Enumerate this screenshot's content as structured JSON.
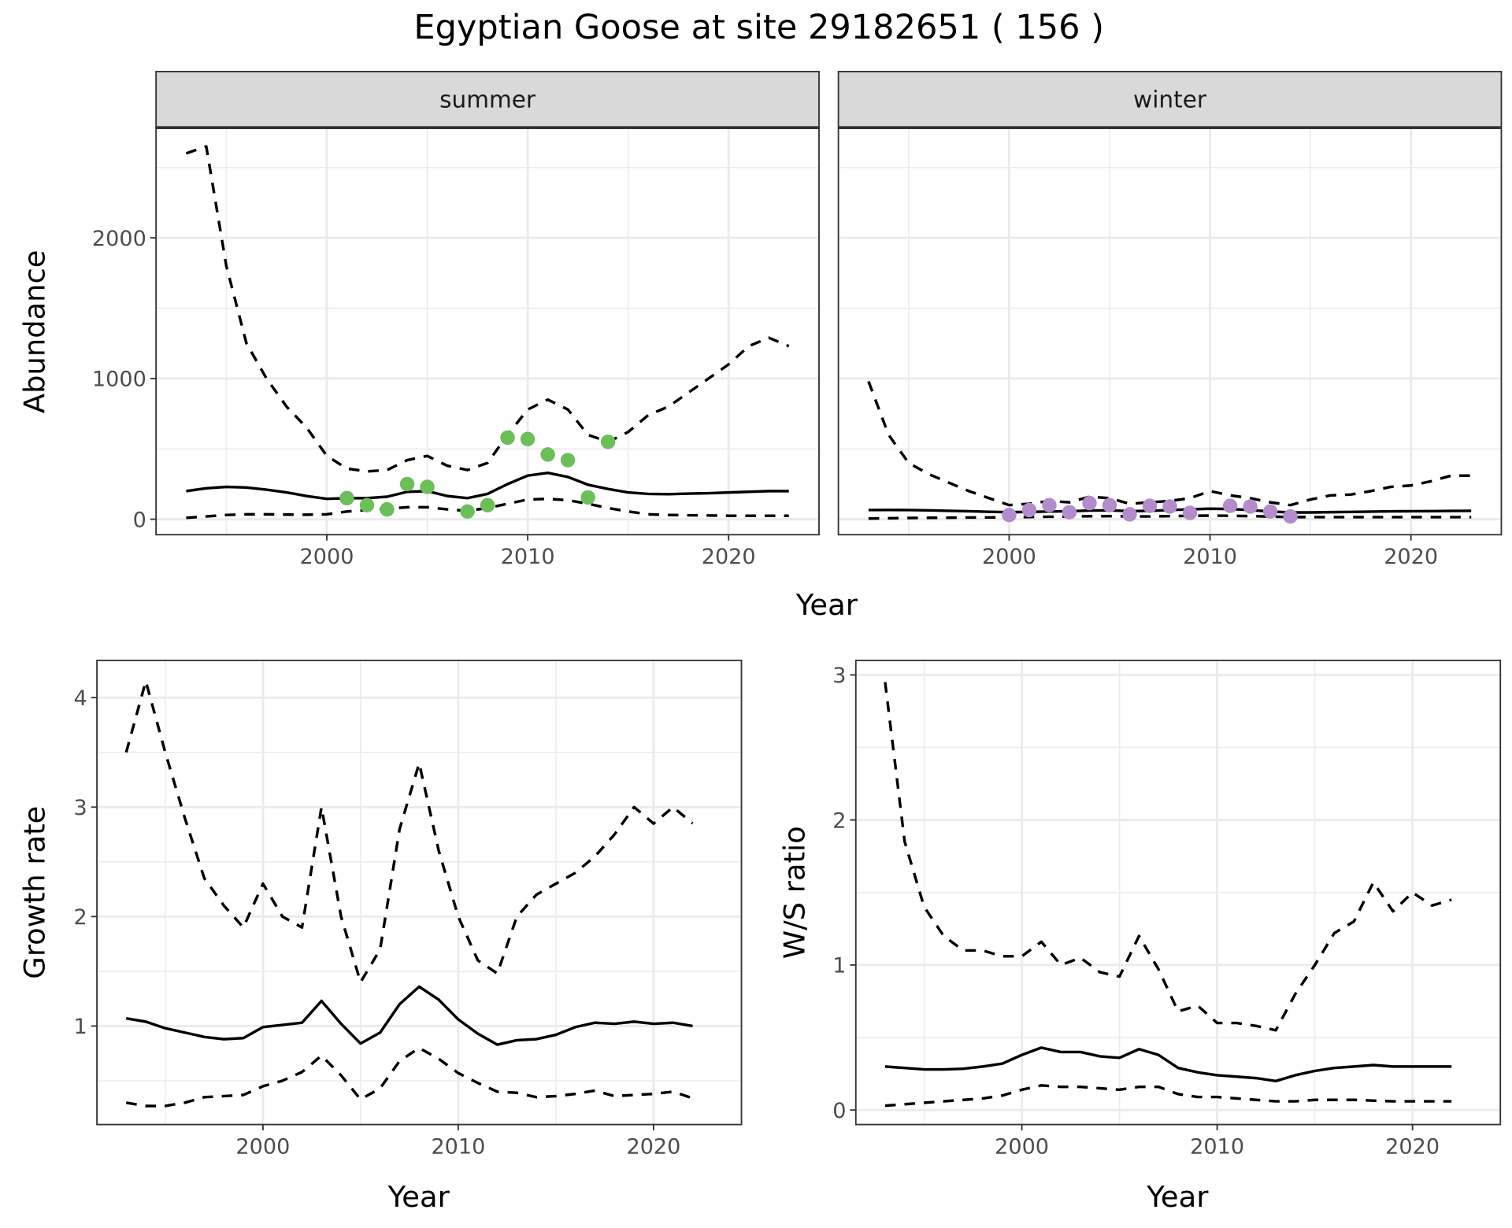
{
  "title": "Egyptian Goose at site 29182651 ( 156 )",
  "colors": {
    "summer_points": "#6abf59",
    "winter_points": "#b28ccb",
    "line": "#000000",
    "strip_bg": "#d9d9d9",
    "grid": "#ebebeb"
  },
  "chart_data": [
    {
      "type": "line",
      "panel": "summer",
      "strip_label": "summer",
      "xlabel": "Year",
      "ylabel": "Abundance",
      "xlim": [
        1991.5,
        2024.5
      ],
      "ylim": [
        -110,
        2783
      ],
      "xticks": [
        2000,
        2010,
        2020
      ],
      "xtick_labels": [
        "2000",
        "2010",
        "2020"
      ],
      "yticks": [
        0,
        1000,
        2000
      ],
      "ytick_labels": [
        "0",
        "1000",
        "2000"
      ],
      "x": [
        1993,
        1994,
        1995,
        1996,
        1997,
        1998,
        1999,
        2000,
        2001,
        2002,
        2003,
        2004,
        2005,
        2006,
        2007,
        2008,
        2009,
        2010,
        2011,
        2012,
        2013,
        2014,
        2015,
        2016,
        2017,
        2018,
        2019,
        2020,
        2021,
        2022,
        2023
      ],
      "series": [
        {
          "name": "upper",
          "style": "dashed",
          "values": [
            2600,
            2650,
            1800,
            1250,
            1000,
            800,
            650,
            450,
            360,
            340,
            350,
            420,
            450,
            380,
            350,
            400,
            600,
            780,
            850,
            780,
            600,
            550,
            620,
            740,
            800,
            900,
            1000,
            1100,
            1230,
            1290,
            1230
          ]
        },
        {
          "name": "mean",
          "style": "solid",
          "values": [
            200,
            220,
            230,
            225,
            210,
            190,
            165,
            145,
            150,
            150,
            160,
            195,
            200,
            165,
            150,
            180,
            250,
            310,
            330,
            300,
            245,
            215,
            190,
            180,
            178,
            182,
            185,
            190,
            195,
            200,
            200
          ]
        },
        {
          "name": "lower",
          "style": "dashed",
          "values": [
            10,
            20,
            30,
            35,
            35,
            33,
            32,
            35,
            55,
            65,
            75,
            85,
            85,
            70,
            60,
            80,
            110,
            140,
            145,
            135,
            110,
            80,
            55,
            35,
            30,
            28,
            27,
            25,
            25,
            25,
            25
          ]
        }
      ],
      "points": {
        "x": [
          2001,
          2002,
          2003,
          2004,
          2005,
          2007,
          2008,
          2009,
          2010,
          2011,
          2012,
          2013,
          2014
        ],
        "y": [
          150,
          100,
          70,
          250,
          230,
          55,
          100,
          580,
          570,
          460,
          420,
          155,
          550
        ]
      }
    },
    {
      "type": "line",
      "panel": "winter",
      "strip_label": "winter",
      "xlabel": "Year",
      "ylabel": "Abundance",
      "xlim": [
        1991.5,
        2024.5
      ],
      "ylim": [
        -110,
        2783
      ],
      "xticks": [
        2000,
        2010,
        2020
      ],
      "xtick_labels": [
        "2000",
        "2010",
        "2020"
      ],
      "yticks": [
        0,
        1000,
        2000
      ],
      "ytick_labels": [],
      "x": [
        1993,
        1994,
        1995,
        1996,
        1997,
        1998,
        1999,
        2000,
        2001,
        2002,
        2003,
        2004,
        2005,
        2006,
        2007,
        2008,
        2009,
        2010,
        2011,
        2012,
        2013,
        2014,
        2015,
        2016,
        2017,
        2018,
        2019,
        2020,
        2021,
        2022,
        2023
      ],
      "series": [
        {
          "name": "upper",
          "style": "dashed",
          "values": [
            980,
            600,
            400,
            320,
            260,
            200,
            150,
            100,
            110,
            130,
            120,
            160,
            150,
            110,
            120,
            130,
            150,
            200,
            170,
            150,
            120,
            100,
            140,
            170,
            175,
            200,
            230,
            240,
            270,
            310,
            310
          ]
        },
        {
          "name": "mean",
          "style": "solid",
          "values": [
            65,
            66,
            65,
            63,
            60,
            57,
            53,
            50,
            52,
            55,
            57,
            62,
            63,
            58,
            60,
            65,
            70,
            75,
            73,
            65,
            55,
            48,
            48,
            50,
            52,
            54,
            56,
            57,
            58,
            59,
            60
          ]
        },
        {
          "name": "lower",
          "style": "dashed",
          "values": [
            5,
            7,
            9,
            10,
            11,
            12,
            13,
            14,
            16,
            18,
            19,
            21,
            22,
            20,
            20,
            22,
            24,
            26,
            25,
            22,
            19,
            16,
            15,
            15,
            15,
            15,
            15,
            15,
            15,
            15,
            15
          ]
        }
      ],
      "points": {
        "x": [
          2000,
          2001,
          2002,
          2003,
          2004,
          2005,
          2006,
          2007,
          2008,
          2009,
          2011,
          2012,
          2013,
          2014
        ],
        "y": [
          30,
          65,
          100,
          50,
          115,
          100,
          35,
          95,
          90,
          45,
          95,
          90,
          55,
          20
        ]
      }
    },
    {
      "type": "line",
      "panel": "growth",
      "xlabel": "Year",
      "ylabel": "Growth rate",
      "xlim": [
        1991.5,
        2024.5
      ],
      "ylim": [
        0.1,
        4.34
      ],
      "xticks": [
        2000,
        2010,
        2020
      ],
      "xtick_labels": [
        "2000",
        "2010",
        "2020"
      ],
      "yticks": [
        1,
        2,
        3,
        4
      ],
      "ytick_labels": [
        "1",
        "2",
        "3",
        "4"
      ],
      "x": [
        1993,
        1994,
        1995,
        1996,
        1997,
        1998,
        1999,
        2000,
        2001,
        2002,
        2003,
        2004,
        2005,
        2006,
        2007,
        2008,
        2009,
        2010,
        2011,
        2012,
        2013,
        2014,
        2015,
        2016,
        2017,
        2018,
        2019,
        2020,
        2021,
        2022
      ],
      "series": [
        {
          "name": "upper",
          "style": "dashed",
          "values": [
            3.5,
            4.15,
            3.5,
            2.9,
            2.35,
            2.1,
            1.9,
            2.3,
            2.0,
            1.9,
            3.0,
            2.0,
            1.4,
            1.7,
            2.8,
            3.4,
            2.6,
            2.0,
            1.6,
            1.48,
            2.0,
            2.2,
            2.3,
            2.4,
            2.55,
            2.75,
            3.0,
            2.85,
            3.0,
            2.85
          ]
        },
        {
          "name": "mean",
          "style": "solid",
          "values": [
            1.07,
            1.04,
            0.98,
            0.94,
            0.9,
            0.88,
            0.89,
            0.99,
            1.01,
            1.03,
            1.23,
            1.02,
            0.84,
            0.94,
            1.2,
            1.36,
            1.24,
            1.06,
            0.93,
            0.83,
            0.87,
            0.88,
            0.92,
            0.99,
            1.03,
            1.02,
            1.04,
            1.02,
            1.03,
            1.0
          ]
        },
        {
          "name": "lower",
          "style": "dashed",
          "values": [
            0.3,
            0.27,
            0.27,
            0.3,
            0.35,
            0.36,
            0.37,
            0.45,
            0.5,
            0.58,
            0.73,
            0.55,
            0.33,
            0.43,
            0.68,
            0.8,
            0.7,
            0.57,
            0.48,
            0.4,
            0.39,
            0.35,
            0.36,
            0.38,
            0.41,
            0.36,
            0.37,
            0.38,
            0.4,
            0.34
          ]
        }
      ]
    },
    {
      "type": "line",
      "panel": "ratio",
      "xlabel": "Year",
      "ylabel": "W/S ratio",
      "xlim": [
        1991.5,
        2024.5
      ],
      "ylim": [
        -0.1,
        3.1
      ],
      "xticks": [
        2000,
        2010,
        2020
      ],
      "xtick_labels": [
        "2000",
        "2010",
        "2020"
      ],
      "yticks": [
        0,
        1,
        2,
        3
      ],
      "ytick_labels": [
        "0",
        "1",
        "2",
        "3"
      ],
      "x": [
        1993,
        1994,
        1995,
        1996,
        1997,
        1998,
        1999,
        2000,
        2001,
        2002,
        2003,
        2004,
        2005,
        2006,
        2007,
        2008,
        2009,
        2010,
        2011,
        2012,
        2013,
        2014,
        2015,
        2016,
        2017,
        2018,
        2019,
        2020,
        2021,
        2022
      ],
      "series": [
        {
          "name": "upper",
          "style": "dashed",
          "values": [
            2.95,
            1.85,
            1.4,
            1.2,
            1.1,
            1.1,
            1.06,
            1.06,
            1.16,
            1.0,
            1.05,
            0.95,
            0.92,
            1.2,
            0.97,
            0.68,
            0.72,
            0.6,
            0.6,
            0.58,
            0.55,
            0.8,
            1.0,
            1.22,
            1.3,
            1.57,
            1.37,
            1.5,
            1.41,
            1.45
          ]
        },
        {
          "name": "mean",
          "style": "solid",
          "values": [
            0.3,
            0.29,
            0.28,
            0.28,
            0.285,
            0.3,
            0.32,
            0.38,
            0.43,
            0.4,
            0.4,
            0.37,
            0.36,
            0.42,
            0.38,
            0.29,
            0.26,
            0.24,
            0.23,
            0.22,
            0.2,
            0.24,
            0.27,
            0.29,
            0.3,
            0.31,
            0.3,
            0.3,
            0.3,
            0.3
          ]
        },
        {
          "name": "lower",
          "style": "dashed",
          "values": [
            0.03,
            0.04,
            0.05,
            0.06,
            0.07,
            0.08,
            0.1,
            0.14,
            0.17,
            0.16,
            0.16,
            0.15,
            0.14,
            0.16,
            0.16,
            0.11,
            0.09,
            0.09,
            0.08,
            0.07,
            0.06,
            0.06,
            0.07,
            0.07,
            0.07,
            0.065,
            0.06,
            0.06,
            0.06,
            0.06
          ]
        }
      ]
    }
  ]
}
